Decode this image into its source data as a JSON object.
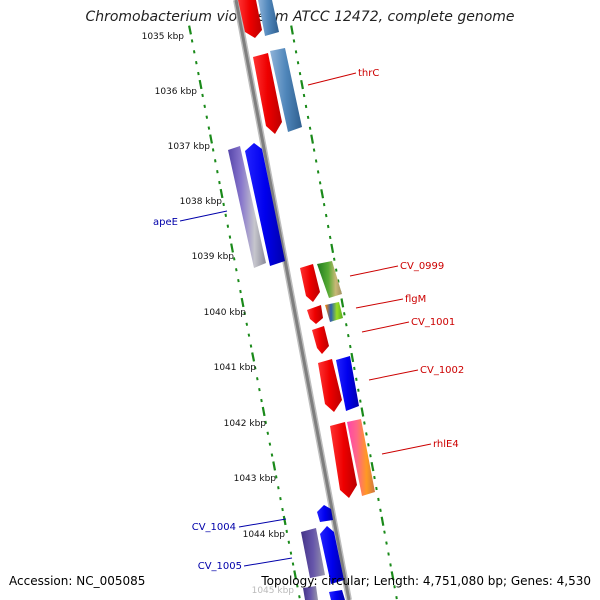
{
  "title": "Chromobacterium violaceum ATCC 12472, complete genome",
  "footer": {
    "accession": "Accession: NC_005085",
    "summary": "Topology: circular; Length: 4,751,080 bp; Genes: 4,530"
  },
  "scale_ticks": [
    {
      "label": "1035 kbp"
    },
    {
      "label": "1036 kbp"
    },
    {
      "label": "1037 kbp"
    },
    {
      "label": "1038 kbp"
    },
    {
      "label": "1039 kbp"
    },
    {
      "label": "1040 kbp"
    },
    {
      "label": "1041 kbp"
    },
    {
      "label": "1042 kbp"
    },
    {
      "label": "1043 kbp"
    },
    {
      "label": "1044 kbp"
    },
    {
      "label": "1045 kbp"
    }
  ],
  "gene_labels": {
    "thrC": "thrC",
    "apeE": "apeE",
    "cv0999": "CV_0999",
    "flgM": "flgM",
    "cv1001": "CV_1001",
    "cv1002": "CV_1002",
    "rhlE4": "rhlE4",
    "cv1004": "CV_1004",
    "cv1005": "CV_1005"
  },
  "colors": {
    "forward_label": "#cc0000",
    "reverse_label": "#0000aa",
    "backbone": "#8c8c8c",
    "tick_dots": "#1a8a1a",
    "forward_gene": "#ff0000",
    "reverse_gene": "#0000ff",
    "steelblue_track": "#4682b4",
    "purple_track": "#7766bb"
  }
}
